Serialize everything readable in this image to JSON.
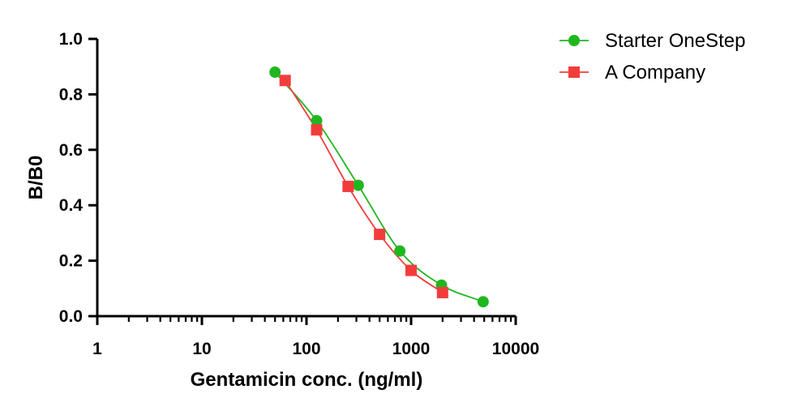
{
  "chart_data": {
    "type": "scatter",
    "xlabel": "Gentamicin conc. (ng/ml)",
    "ylabel": "B/B0",
    "x_scale": "log",
    "xlim": [
      1,
      10000
    ],
    "ylim": [
      0,
      1.0
    ],
    "x_ticks": [
      "1",
      "10",
      "100",
      "1000",
      "10000"
    ],
    "y_ticks": [
      "0.0",
      "0.2",
      "0.4",
      "0.6",
      "0.8",
      "1.0"
    ],
    "grid": false,
    "legend_position": "top-right",
    "series": [
      {
        "name": "Starter OneStep",
        "color": "#1fb71f",
        "marker": "circle",
        "x": [
          50,
          125,
          312.5,
          781.25,
          1953.125,
          4882.8
        ],
        "y": [
          0.88,
          0.705,
          0.472,
          0.235,
          0.112,
          0.052
        ]
      },
      {
        "name": "A Company",
        "color": "#f23c3c",
        "marker": "square",
        "x": [
          62.5,
          125,
          250,
          500,
          1000,
          2000
        ],
        "y": [
          0.85,
          0.672,
          0.468,
          0.295,
          0.165,
          0.085
        ]
      }
    ]
  }
}
